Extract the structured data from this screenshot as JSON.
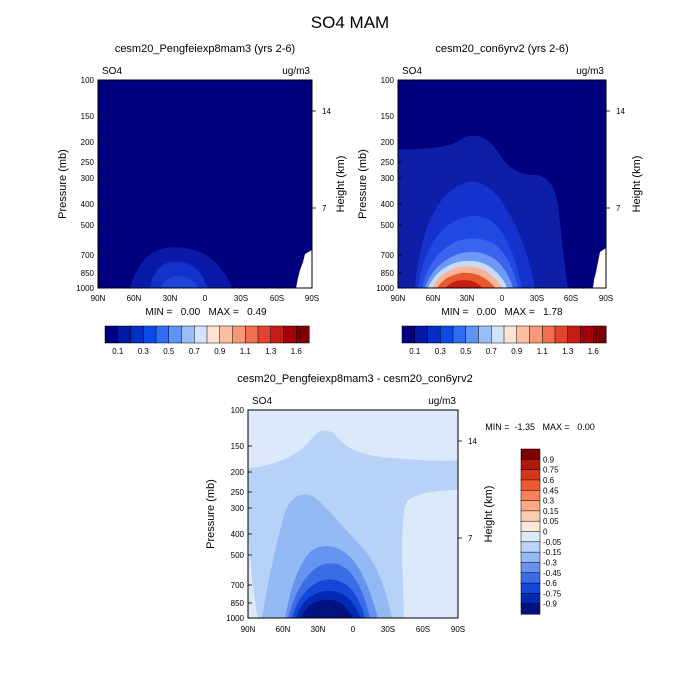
{
  "figure": {
    "title": "SO4 MAM"
  },
  "chart_data": [
    {
      "type": "heatmap",
      "title": "cesm20_Pengfeiexp8mam3 (yrs 2-6)",
      "variable": "SO4",
      "units": "ug/m3",
      "xlabel": "",
      "ylabel": "Pressure (mb)",
      "y2label": "Height (km)",
      "x_ticks": [
        "90N",
        "60N",
        "30N",
        "0",
        "30S",
        "60S",
        "90S"
      ],
      "y_ticks": [
        "100",
        "150",
        "200",
        "250",
        "300",
        "400",
        "500",
        "700",
        "850",
        "1000"
      ],
      "y2_ticks": [
        "14",
        "7"
      ],
      "y_scale": "log",
      "stats": "MIN =   0.00   MAX =   0.49",
      "colorbar": {
        "labels": [
          "0.1",
          "0.3",
          "0.5",
          "0.7",
          "0.9",
          "1.1",
          "1.3",
          "1.6"
        ],
        "colors": [
          "#00007f",
          "#0019a3",
          "#002fc8",
          "#0a4be8",
          "#2f6cf2",
          "#5e93f7",
          "#9bbdf8",
          "#d2e3fb",
          "#fde3d2",
          "#fbbf9f",
          "#f79978",
          "#f06e51",
          "#e2432e",
          "#c51d15",
          "#a2000a",
          "#7a0005"
        ]
      },
      "grid": false
    },
    {
      "type": "heatmap",
      "title": "cesm20_con6yrv2 (yrs 2-6)",
      "variable": "SO4",
      "units": "ug/m3",
      "xlabel": "",
      "ylabel": "Pressure (mb)",
      "y2label": "Height (km)",
      "x_ticks": [
        "90N",
        "60N",
        "30N",
        "0",
        "30S",
        "60S",
        "90S"
      ],
      "y_ticks": [
        "100",
        "150",
        "200",
        "250",
        "300",
        "400",
        "500",
        "700",
        "850",
        "1000"
      ],
      "y2_ticks": [
        "14",
        "7"
      ],
      "y_scale": "log",
      "stats": "MIN =   0.00   MAX =   1.78",
      "colorbar": {
        "labels": [
          "0.1",
          "0.3",
          "0.5",
          "0.7",
          "0.9",
          "1.1",
          "1.3",
          "1.6"
        ],
        "colors": [
          "#00007f",
          "#0019a3",
          "#002fc8",
          "#0a4be8",
          "#2f6cf2",
          "#5e93f7",
          "#9bbdf8",
          "#d2e3fb",
          "#fde3d2",
          "#fbbf9f",
          "#f79978",
          "#f06e51",
          "#e2432e",
          "#c51d15",
          "#a2000a",
          "#7a0005"
        ]
      },
      "grid": false
    },
    {
      "type": "heatmap",
      "title": "cesm20_Pengfeiexp8mam3 - cesm20_con6yrv2",
      "variable": "SO4",
      "units": "ug/m3",
      "xlabel": "",
      "ylabel": "Pressure (mb)",
      "y2label": "Height (km)",
      "x_ticks": [
        "90N",
        "60N",
        "30N",
        "0",
        "30S",
        "60S",
        "90S"
      ],
      "y_ticks": [
        "100",
        "150",
        "200",
        "250",
        "300",
        "400",
        "500",
        "700",
        "850",
        "1000"
      ],
      "y2_ticks": [
        "14",
        "7"
      ],
      "y_scale": "log",
      "stats": "MIN =  -1.35   MAX =   0.00",
      "colorbar": {
        "labels": [
          "0.9",
          "0.75",
          "0.6",
          "0.45",
          "0.3",
          "0.15",
          "0.05",
          "0",
          "-0.05",
          "-0.15",
          "-0.3",
          "-0.45",
          "-0.6",
          "-0.75",
          "-0.9"
        ],
        "colors": [
          "#7f0000",
          "#b2170b",
          "#d8361b",
          "#ee5a34",
          "#f7825a",
          "#fba883",
          "#fccbb0",
          "#fde7da",
          "#dceaf9",
          "#bcd5f7",
          "#93b9f4",
          "#6693ef",
          "#3a6ce6",
          "#1447d8",
          "#002ab3",
          "#00127f"
        ]
      },
      "grid": false
    }
  ]
}
